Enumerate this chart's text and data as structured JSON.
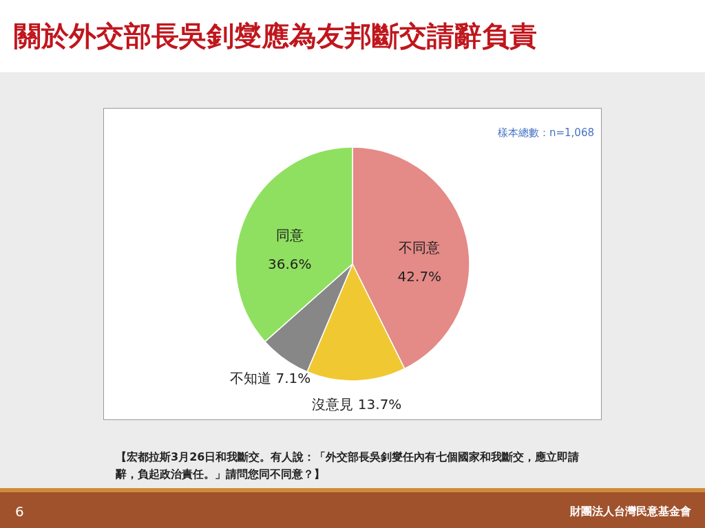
{
  "chart_data": {
    "type": "pie",
    "title": "關於外交部長吳釗燮應為友邦斷交請辭負責",
    "categories": [
      "不同意",
      "沒意見",
      "不知道",
      "同意"
    ],
    "values": [
      42.7,
      13.7,
      7.1,
      36.6
    ],
    "colors": [
      "#e48a87",
      "#f0c832",
      "#878787",
      "#8fe060"
    ],
    "value_labels": [
      "42.7%",
      "13.7%",
      "7.1%",
      "36.6%"
    ],
    "legend": false,
    "annotations": [
      "樣本總數：n=1,068",
      "【宏都拉斯3月26日和我斷交。有人說：「外交部長吳釗燮任內有七個國家和我斷交，應立即請辭，負起政治責任。」請問您同不同意？】",
      "財團法人台灣民意基金會",
      "6"
    ]
  }
}
